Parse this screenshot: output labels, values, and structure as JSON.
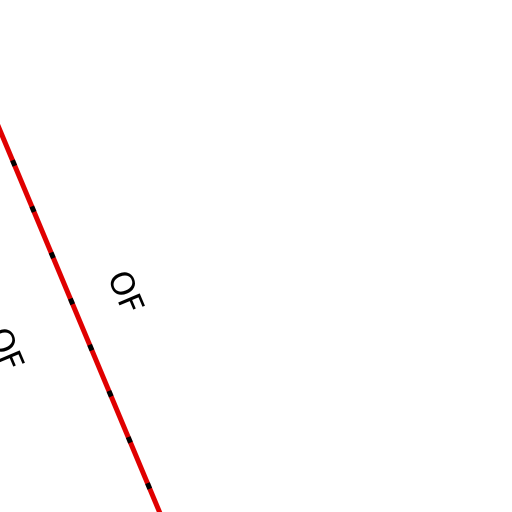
{
  "labels": [
    {
      "text": "OF"
    },
    {
      "text": "OF"
    }
  ]
}
